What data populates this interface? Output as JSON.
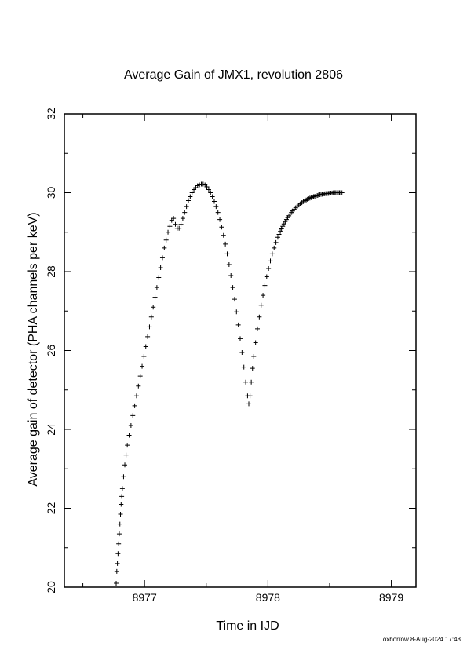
{
  "chart_data": {
    "type": "scatter",
    "title": "Average Gain of JMX1, revolution 2806",
    "xlabel": "Time in IJD",
    "ylabel": "Average gain of detector (PHA channels per keV)",
    "xlim": [
      8976.35,
      8979.2
    ],
    "ylim": [
      20,
      32
    ],
    "x_ticks": [
      8977,
      8978,
      8979
    ],
    "y_ticks": [
      20,
      22,
      24,
      26,
      28,
      30,
      32
    ],
    "marker": "plus",
    "grid": false,
    "series": [
      {
        "values": [
          [
            8976.77,
            20.1
          ],
          [
            8976.775,
            20.4
          ],
          [
            8976.78,
            20.6
          ],
          [
            8976.785,
            20.85
          ],
          [
            8976.79,
            21.1
          ],
          [
            8976.795,
            21.35
          ],
          [
            8976.8,
            21.6
          ],
          [
            8976.805,
            21.85
          ],
          [
            8976.81,
            22.1
          ],
          [
            8976.815,
            22.3
          ],
          [
            8976.82,
            22.5
          ],
          [
            8976.83,
            22.8
          ],
          [
            8976.84,
            23.1
          ],
          [
            8976.85,
            23.35
          ],
          [
            8976.86,
            23.6
          ],
          [
            8976.875,
            23.85
          ],
          [
            8976.89,
            24.1
          ],
          [
            8976.905,
            24.35
          ],
          [
            8976.92,
            24.6
          ],
          [
            8976.935,
            24.85
          ],
          [
            8976.95,
            25.1
          ],
          [
            8976.965,
            25.35
          ],
          [
            8976.98,
            25.6
          ],
          [
            8976.995,
            25.85
          ],
          [
            8977.01,
            26.1
          ],
          [
            8977.025,
            26.35
          ],
          [
            8977.04,
            26.6
          ],
          [
            8977.055,
            26.85
          ],
          [
            8977.07,
            27.1
          ],
          [
            8977.085,
            27.35
          ],
          [
            8977.1,
            27.6
          ],
          [
            8977.115,
            27.85
          ],
          [
            8977.13,
            28.1
          ],
          [
            8977.145,
            28.35
          ],
          [
            8977.16,
            28.6
          ],
          [
            8977.175,
            28.8
          ],
          [
            8977.19,
            29.0
          ],
          [
            8977.205,
            29.15
          ],
          [
            8977.22,
            29.3
          ],
          [
            8977.235,
            29.35
          ],
          [
            8977.25,
            29.2
          ],
          [
            8977.265,
            29.1
          ],
          [
            8977.28,
            29.1
          ],
          [
            8977.295,
            29.2
          ],
          [
            8977.31,
            29.35
          ],
          [
            8977.325,
            29.5
          ],
          [
            8977.34,
            29.65
          ],
          [
            8977.355,
            29.8
          ],
          [
            8977.37,
            29.9
          ],
          [
            8977.385,
            30.0
          ],
          [
            8977.4,
            30.08
          ],
          [
            8977.415,
            30.13
          ],
          [
            8977.43,
            30.18
          ],
          [
            8977.445,
            30.2
          ],
          [
            8977.46,
            30.22
          ],
          [
            8977.475,
            30.22
          ],
          [
            8977.49,
            30.2
          ],
          [
            8977.505,
            30.15
          ],
          [
            8977.52,
            30.08
          ],
          [
            8977.535,
            30.0
          ],
          [
            8977.55,
            29.9
          ],
          [
            8977.565,
            29.78
          ],
          [
            8977.58,
            29.65
          ],
          [
            8977.595,
            29.5
          ],
          [
            8977.61,
            29.32
          ],
          [
            8977.625,
            29.13
          ],
          [
            8977.64,
            28.92
          ],
          [
            8977.655,
            28.7
          ],
          [
            8977.67,
            28.45
          ],
          [
            8977.685,
            28.18
          ],
          [
            8977.7,
            27.9
          ],
          [
            8977.715,
            27.6
          ],
          [
            8977.73,
            27.3
          ],
          [
            8977.745,
            26.98
          ],
          [
            8977.76,
            26.65
          ],
          [
            8977.775,
            26.3
          ],
          [
            8977.79,
            25.95
          ],
          [
            8977.805,
            25.58
          ],
          [
            8977.82,
            25.2
          ],
          [
            8977.835,
            24.85
          ],
          [
            8977.845,
            24.65
          ],
          [
            8977.855,
            24.85
          ],
          [
            8977.865,
            25.2
          ],
          [
            8977.875,
            25.55
          ],
          [
            8977.885,
            25.85
          ],
          [
            8977.9,
            26.2
          ],
          [
            8977.915,
            26.55
          ],
          [
            8977.93,
            26.85
          ],
          [
            8977.945,
            27.15
          ],
          [
            8977.96,
            27.4
          ],
          [
            8977.975,
            27.65
          ],
          [
            8977.99,
            27.87
          ],
          [
            8978.005,
            28.08
          ],
          [
            8978.02,
            28.27
          ],
          [
            8978.035,
            28.45
          ],
          [
            8978.05,
            28.6
          ],
          [
            8978.065,
            28.74
          ],
          [
            8978.08,
            28.87
          ],
          [
            8978.1,
            29.02
          ],
          [
            8978.12,
            29.15
          ],
          [
            8978.14,
            29.27
          ],
          [
            8978.16,
            29.37
          ],
          [
            8978.18,
            29.46
          ],
          [
            8978.2,
            29.54
          ],
          [
            8978.225,
            29.62
          ],
          [
            8978.25,
            29.69
          ],
          [
            8978.275,
            29.75
          ],
          [
            8978.3,
            29.8
          ],
          [
            8978.33,
            29.85
          ],
          [
            8978.36,
            29.89
          ],
          [
            8978.39,
            29.92
          ],
          [
            8978.42,
            29.95
          ],
          [
            8978.45,
            29.97
          ],
          [
            8978.48,
            29.98
          ],
          [
            8978.51,
            29.99
          ],
          [
            8978.54,
            30.0
          ],
          [
            8978.57,
            30.0
          ],
          [
            8978.6,
            30.0
          ]
        ]
      }
    ]
  },
  "footer": "oxborrow  8-Aug-2024 17:48"
}
